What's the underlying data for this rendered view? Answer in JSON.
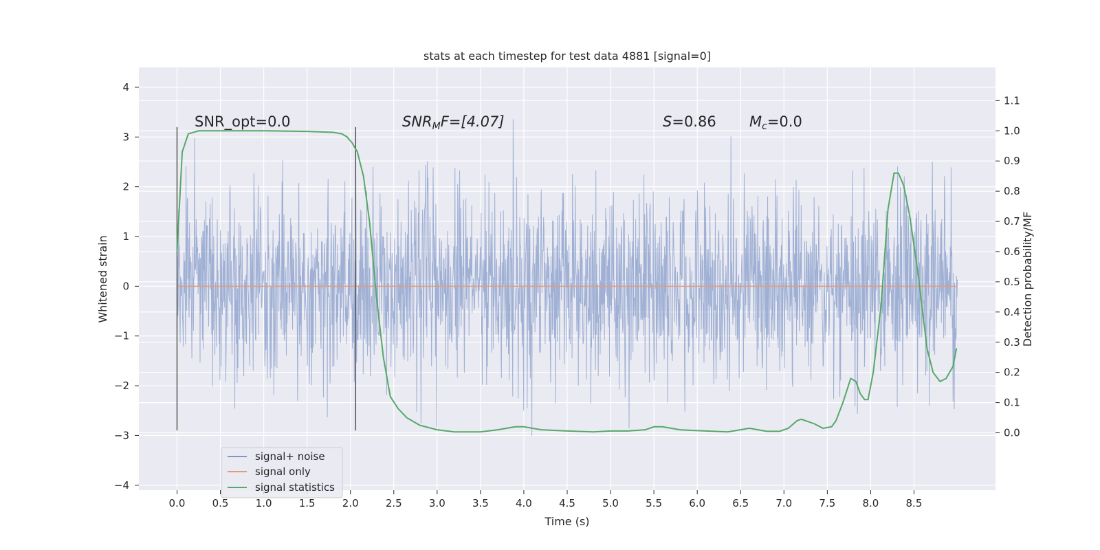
{
  "chart_data": {
    "type": "line",
    "title": "stats at each timestep for test data 4881 [signal=0]",
    "xlabel": "Time (s)",
    "ylabel_left": "Whitened strain",
    "ylabel_right": "Detection probability/MF",
    "xlim": [
      -0.44,
      9.44
    ],
    "ylim_left": [
      -4.1,
      4.4
    ],
    "ylim_right": [
      -0.19,
      1.21
    ],
    "x_ticks": [
      "0.0",
      "0.5",
      "1.0",
      "1.5",
      "2.0",
      "2.5",
      "3.0",
      "3.5",
      "4.0",
      "4.5",
      "5.0",
      "5.5",
      "6.0",
      "6.5",
      "7.0",
      "7.5",
      "8.0",
      "8.5"
    ],
    "y_left_ticks": [
      "4",
      "3",
      "2",
      "1",
      "0",
      "−1",
      "−2",
      "−3",
      "−4"
    ],
    "y_right_ticks": [
      "1.1",
      "1.0",
      "0.9",
      "0.8",
      "0.7",
      "0.6",
      "0.5",
      "0.4",
      "0.3",
      "0.2",
      "0.1",
      "0.0"
    ],
    "grid": true,
    "legend_position": "lower-left",
    "annotations": {
      "snr_opt": "SNR_opt=0.0",
      "snr_mf_prefix": "SNR",
      "snr_mf_sub": "M",
      "snr_mf_suffix": "F=[4.07]",
      "s_label": "S",
      "s_value": "=0.86",
      "mc_label": "M",
      "mc_sub": "c",
      "mc_value": "=0.0"
    },
    "markers_x": [
      0.0,
      2.06
    ],
    "markers_y_range": [
      -2.9,
      3.2
    ],
    "series": [
      {
        "name": "signal+ noise",
        "color": "#7f97c8",
        "kind": "noise",
        "x_range": [
          0.0,
          9.0
        ],
        "y_range": [
          -3.7,
          4.0
        ],
        "samples": 2000
      },
      {
        "name": "signal only",
        "color": "#e59a7c",
        "kind": "flat",
        "x": [
          0.0,
          9.0
        ],
        "y": [
          0.0,
          0.0
        ]
      },
      {
        "name": "signal statistics",
        "color": "#55a868",
        "axis": "right",
        "x": [
          0.0,
          0.06,
          0.13,
          0.25,
          0.4,
          0.6,
          1.0,
          1.5,
          1.8,
          1.9,
          1.96,
          2.02,
          2.08,
          2.15,
          2.22,
          2.3,
          2.38,
          2.46,
          2.55,
          2.65,
          2.8,
          3.0,
          3.2,
          3.5,
          3.7,
          3.9,
          4.0,
          4.2,
          4.5,
          4.8,
          5.0,
          5.2,
          5.4,
          5.5,
          5.6,
          5.8,
          6.1,
          6.35,
          6.5,
          6.6,
          6.8,
          6.95,
          7.05,
          7.15,
          7.2,
          7.35,
          7.45,
          7.55,
          7.6,
          7.68,
          7.77,
          7.83,
          7.88,
          7.93,
          7.97,
          8.03,
          8.12,
          8.2,
          8.27,
          8.32,
          8.38,
          8.45,
          8.55,
          8.65,
          8.72,
          8.8,
          8.87,
          8.95,
          8.99
        ],
        "y": [
          0.6,
          0.93,
          0.99,
          1.0,
          1.0,
          1.0,
          1.0,
          0.998,
          0.995,
          0.99,
          0.98,
          0.96,
          0.93,
          0.85,
          0.7,
          0.45,
          0.25,
          0.12,
          0.08,
          0.05,
          0.025,
          0.01,
          0.003,
          0.003,
          0.01,
          0.02,
          0.02,
          0.01,
          0.006,
          0.003,
          0.006,
          0.006,
          0.01,
          0.02,
          0.02,
          0.01,
          0.006,
          0.003,
          0.01,
          0.015,
          0.005,
          0.005,
          0.015,
          0.04,
          0.045,
          0.03,
          0.015,
          0.02,
          0.04,
          0.1,
          0.18,
          0.17,
          0.13,
          0.11,
          0.11,
          0.2,
          0.42,
          0.74,
          0.86,
          0.86,
          0.82,
          0.72,
          0.52,
          0.28,
          0.2,
          0.17,
          0.18,
          0.22,
          0.28
        ]
      }
    ]
  }
}
